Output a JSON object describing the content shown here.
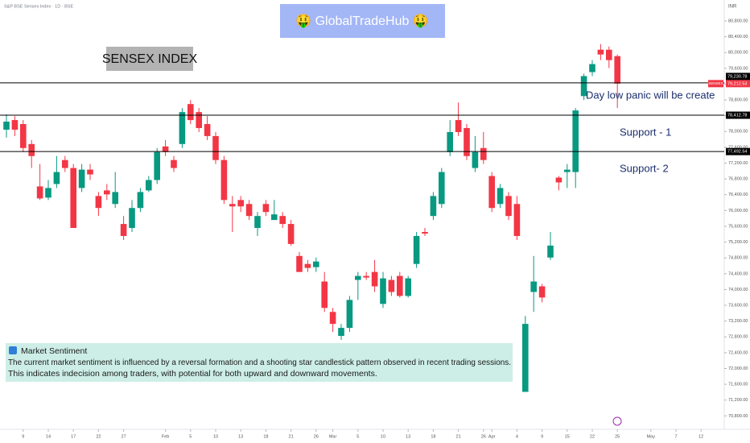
{
  "chart_data": {
    "type": "candlestick",
    "header": "S&P BSE Sensex Index · 1D · BSE",
    "banner": "🤑 GlobalTradeHub 🤑",
    "title": "SENSEX INDEX",
    "currency": "INR",
    "up_color": "#089981",
    "down_color": "#f23645",
    "open": [
      78047,
      78290,
      78189,
      77683,
      76610,
      76327,
      76671,
      77278,
      77076,
      76570,
      77035,
      76367,
      76509,
      76165,
      75659,
      75558,
      76064,
      76509,
      76772,
      77622,
      77278,
      77683,
      78695,
      78492,
      78189,
      77885,
      77278,
      76165,
      76266,
      76165,
      75558,
      76165,
      75760,
      75861,
      75659,
      74849,
      74647,
      74566,
      74202,
      73432,
      72825,
      73028,
      74242,
      74343,
      74444,
      73635,
      74242,
      74343,
      73837,
      74647,
      75456,
      75861,
      76165,
      77480,
      78290,
      78088,
      77076,
      77582,
      76873,
      76165,
      76367,
      76165,
      71408,
      73938,
      74080,
      74809,
      76833,
      76974,
      76974,
      78897,
      79504,
      80071,
      80071,
      79909
    ],
    "high": [
      78432,
      78391,
      78290,
      77784,
      77177,
      76772,
      77379,
      77379,
      77177,
      77177,
      77177,
      76468,
      76671,
      76974,
      75861,
      76266,
      76570,
      76873,
      77582,
      77784,
      77379,
      78594,
      78796,
      78594,
      78391,
      77986,
      77379,
      76367,
      76367,
      76266,
      75962,
      76266,
      76266,
      75962,
      75760,
      74950,
      74748,
      74809,
      74444,
      73534,
      73129,
      73837,
      74444,
      74444,
      74748,
      74444,
      74343,
      74444,
      74343,
      75456,
      75558,
      76468,
      77076,
      78290,
      78735,
      78189,
      77885,
      77986,
      76974,
      76671,
      76468,
      76367,
      73331,
      74849,
      74141,
      75456,
      76873,
      77177,
      78594,
      79464,
      79808,
      80213,
      80152,
      79950
    ],
    "low": [
      77845,
      77885,
      77480,
      77076,
      76266,
      76266,
      76570,
      76974,
      75558,
      76468,
      76772,
      75861,
      76266,
      76064,
      75254,
      75456,
      75962,
      76468,
      76671,
      77379,
      76974,
      77582,
      78189,
      77986,
      77784,
      77177,
      76165,
      75456,
      75962,
      75760,
      75355,
      75861,
      75760,
      75558,
      75112,
      74444,
      74444,
      74444,
      73432,
      72926,
      72724,
      72926,
      73736,
      74242,
      73938,
      73534,
      73837,
      73797,
      73797,
      74546,
      75355,
      75760,
      76064,
      77379,
      77885,
      77278,
      76974,
      77177,
      75962,
      76064,
      75760,
      75254,
      71408,
      73432,
      73675,
      74748,
      76509,
      76570,
      76570,
      78796,
      79403,
      79808,
      79606,
      78594
    ],
    "close": [
      78250,
      78047,
      77582,
      77379,
      76306,
      76570,
      76974,
      77076,
      75558,
      77035,
      76914,
      76064,
      76408,
      76468,
      75355,
      76064,
      76468,
      76772,
      77480,
      77480,
      77076,
      78492,
      78290,
      78088,
      77885,
      77278,
      76266,
      76104,
      76104,
      75861,
      75861,
      75962,
      75902,
      75659,
      75153,
      74444,
      74546,
      74708,
      73534,
      73129,
      73028,
      73736,
      74343,
      74303,
      74080,
      74282,
      73938,
      73837,
      74282,
      75355,
      75416,
      76367,
      76974,
      77986,
      77986,
      77379,
      77480,
      77278,
      76064,
      76570,
      75861,
      75355,
      73129,
      74202,
      73797,
      75112,
      76711,
      77035,
      78533,
      79403,
      79707,
      79950,
      79808,
      79212.53
    ],
    "xlim": [
      -0.77,
      85.77
    ],
    "xticks": [
      {
        "value": 2,
        "label": "9"
      },
      {
        "value": 5,
        "label": "14"
      },
      {
        "value": 8,
        "label": "17"
      },
      {
        "value": 11,
        "label": "22"
      },
      {
        "value": 14,
        "label": "27"
      },
      {
        "value": 19,
        "label": "Feb"
      },
      {
        "value": 22,
        "label": "5"
      },
      {
        "value": 25,
        "label": "10"
      },
      {
        "value": 28,
        "label": "13"
      },
      {
        "value": 31,
        "label": "18"
      },
      {
        "value": 34,
        "label": "21"
      },
      {
        "value": 37,
        "label": "26"
      },
      {
        "value": 39,
        "label": "Mar"
      },
      {
        "value": 42,
        "label": "5"
      },
      {
        "value": 45,
        "label": "10"
      },
      {
        "value": 48,
        "label": "13"
      },
      {
        "value": 51,
        "label": "18"
      },
      {
        "value": 54,
        "label": "21"
      },
      {
        "value": 57,
        "label": "26"
      },
      {
        "value": 58,
        "label": "Apr"
      },
      {
        "value": 61,
        "label": "4"
      },
      {
        "value": 64,
        "label": "9"
      },
      {
        "value": 67,
        "label": "15"
      },
      {
        "value": 70,
        "label": "22"
      },
      {
        "value": 73,
        "label": "25"
      },
      {
        "value": 77,
        "label": "May"
      },
      {
        "value": 80,
        "label": "7"
      },
      {
        "value": 83,
        "label": "12"
      }
    ],
    "ylim": [
      70460,
      81330
    ],
    "yticks": [
      {
        "value": 70800,
        "label": "70,800.00"
      },
      {
        "value": 71200,
        "label": "71,200.00"
      },
      {
        "value": 71600,
        "label": "71,600.00"
      },
      {
        "value": 72000,
        "label": "72,000.00"
      },
      {
        "value": 72400,
        "label": "72,400.00"
      },
      {
        "value": 72800,
        "label": "72,800.00"
      },
      {
        "value": 73200,
        "label": "73,200.00"
      },
      {
        "value": 73600,
        "label": "73,600.00"
      },
      {
        "value": 74000,
        "label": "74,000.00"
      },
      {
        "value": 74400,
        "label": "74,400.00"
      },
      {
        "value": 74800,
        "label": "74,800.00"
      },
      {
        "value": 75200,
        "label": "75,200.00"
      },
      {
        "value": 75600,
        "label": "75,600.00"
      },
      {
        "value": 76000,
        "label": "76,000.00"
      },
      {
        "value": 76400,
        "label": "76,400.00"
      },
      {
        "value": 76800,
        "label": "76,800.00"
      },
      {
        "value": 77200,
        "label": "77,200.00"
      },
      {
        "value": 77600,
        "label": "77,600.00"
      },
      {
        "value": 78000,
        "label": "78,000.00"
      },
      {
        "value": 78400,
        "label": "78,400.00"
      },
      {
        "value": 78800,
        "label": "78,800.00"
      },
      {
        "value": 79200,
        "label": "79,200.00"
      },
      {
        "value": 79600,
        "label": "79,600.00"
      },
      {
        "value": 80000,
        "label": "80,000.00"
      },
      {
        "value": 80400,
        "label": "80,400.00"
      },
      {
        "value": 80800,
        "label": "80,800.00"
      }
    ],
    "levels": [
      {
        "value": 79230.78,
        "label": "79,230.78"
      },
      {
        "value": 78412.78,
        "label": "78,412.78"
      },
      {
        "value": 77492.54,
        "label": "77,492.54"
      }
    ],
    "last_price": {
      "name": "SENSEX",
      "value": 79212.53,
      "label": "79,212.53"
    },
    "annotations": [
      "Day low panic will be create",
      "Support - 1",
      "Support- 2"
    ],
    "sentiment": {
      "title": "Market Sentiment",
      "lines": [
        "The current market sentiment is influenced by a reversal formation and a shooting star candlestick pattern observed in recent trading sessions.",
        " This indicates indecision among traders, with potential for both upward and downward movements."
      ]
    }
  }
}
